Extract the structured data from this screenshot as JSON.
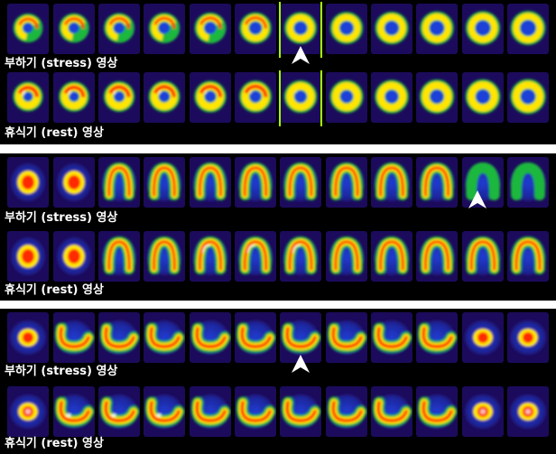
{
  "panels": [
    {
      "view": "short-axis",
      "stress": {
        "caption": "부하기 (stress) 영상",
        "slices": 12
      },
      "rest": {
        "caption": "휴식기 (rest) 영상",
        "slices": 12
      },
      "defect_arrow_slice": 7,
      "highlight_slice": 7
    },
    {
      "view": "vertical-long-axis",
      "stress": {
        "caption": "부하기 (stress) 영상",
        "slices": 12
      },
      "rest": {
        "caption": "휴식기 (rest) 영상",
        "slices": 12
      },
      "defect_arrow_slice": 11,
      "highlight_slice": null
    },
    {
      "view": "horizontal-long-axis",
      "stress": {
        "caption": "부하기 (stress) 영상",
        "slices": 12
      },
      "rest": {
        "caption": "휴식기 (rest) 영상",
        "slices": 12
      },
      "defect_arrow_slice": 7,
      "highlight_slice": null
    }
  ],
  "colors": {
    "background": "#1c0b5c",
    "low": "#1f3fd8",
    "mid": "#1cb83c",
    "high": "#ffe500",
    "hot": "#ff2a00",
    "max": "#ffffff",
    "marker": "#a6ff00",
    "arrow": "#ffffff"
  }
}
